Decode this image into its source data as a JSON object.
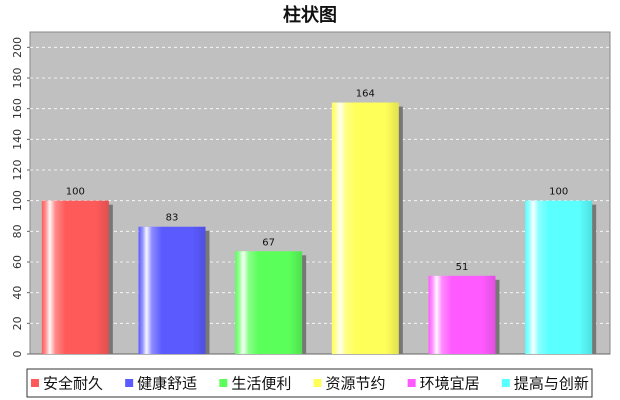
{
  "chart_data": {
    "type": "bar",
    "title": "柱状图",
    "categories": [
      "安全耐久",
      "健康舒适",
      "生活便利",
      "资源节约",
      "环境宜居",
      "提高与创新"
    ],
    "values": [
      100,
      83,
      67,
      164,
      51,
      100
    ],
    "colors": [
      "#ff5a5a",
      "#5a5aff",
      "#5aff5a",
      "#ffff5a",
      "#ff5aff",
      "#5affff"
    ],
    "ylim": [
      0,
      210
    ],
    "yticks": [
      0,
      20,
      40,
      60,
      80,
      100,
      120,
      140,
      160,
      180,
      200
    ],
    "grid": true,
    "legend_position": "bottom",
    "plot_background": "#c0c0c0"
  }
}
